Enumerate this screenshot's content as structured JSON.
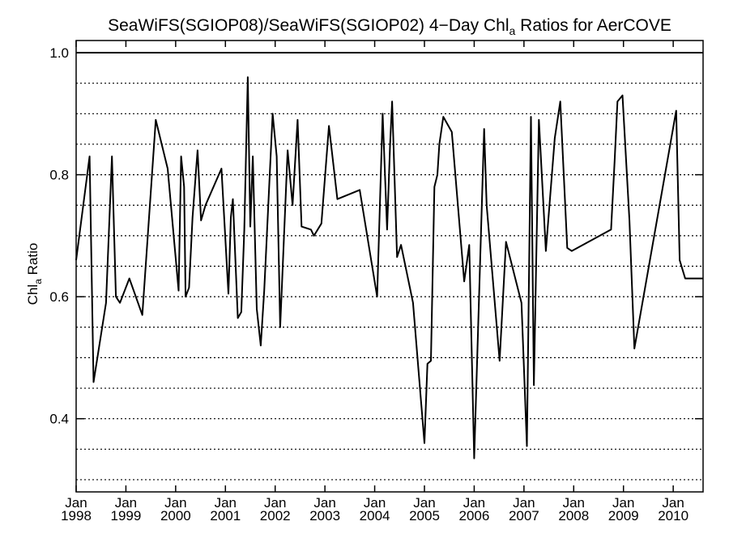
{
  "chart_data": {
    "type": "line",
    "title": "SeaWiFS(SGIOP08)/SeaWiFS(SGIOP02) 4−Day Chl",
    "title_subscript": "a",
    "title_suffix": " Ratios for AerCOVE",
    "ylabel": "Chl",
    "ylabel_subscript": "a",
    "ylabel_suffix": " Ratio",
    "xlabel": "",
    "xlim": [
      1998.0,
      2010.6
    ],
    "ylim": [
      0.28,
      1.02
    ],
    "y_ticks": [
      "0.4",
      "0.6",
      "0.8",
      "1.0"
    ],
    "x_ticks": [
      {
        "month": "Jan",
        "year": "1998"
      },
      {
        "month": "Jan",
        "year": "1999"
      },
      {
        "month": "Jan",
        "year": "2000"
      },
      {
        "month": "Jan",
        "year": "2001"
      },
      {
        "month": "Jan",
        "year": "2002"
      },
      {
        "month": "Jan",
        "year": "2003"
      },
      {
        "month": "Jan",
        "year": "2004"
      },
      {
        "month": "Jan",
        "year": "2005"
      },
      {
        "month": "Jan",
        "year": "2006"
      },
      {
        "month": "Jan",
        "year": "2007"
      },
      {
        "month": "Jan",
        "year": "2008"
      },
      {
        "month": "Jan",
        "year": "2009"
      },
      {
        "month": "Jan",
        "year": "2010"
      }
    ],
    "dotted_grid": [
      0.3,
      0.35,
      0.4,
      0.45,
      0.5,
      0.55,
      0.6,
      0.65,
      0.7,
      0.75,
      0.8,
      0.85,
      0.9,
      0.95
    ],
    "reference_line": 1.0,
    "series": [
      {
        "color": "#000000",
        "x": [
          1998.0,
          1998.27,
          1998.35,
          1998.6,
          1998.72,
          1998.8,
          1998.88,
          1999.07,
          1999.33,
          1999.6,
          1999.84,
          2000.06,
          2000.11,
          2000.17,
          2000.2,
          2000.27,
          2000.34,
          2000.44,
          2000.51,
          2000.6,
          2000.92,
          2001.06,
          2001.11,
          2001.15,
          2001.25,
          2001.32,
          2001.38,
          2001.45,
          2001.5,
          2001.55,
          2001.63,
          2001.71,
          2001.78,
          2001.95,
          2002.03,
          2002.1,
          2002.25,
          2002.35,
          2002.45,
          2002.53,
          2002.72,
          2002.78,
          2002.93,
          2003.08,
          2003.25,
          2003.7,
          2004.05,
          2004.16,
          2004.25,
          2004.31,
          2004.35,
          2004.45,
          2004.53,
          2004.77,
          2005.0,
          2005.06,
          2005.13,
          2005.2,
          2005.26,
          2005.3,
          2005.38,
          2005.55,
          2005.8,
          2005.9,
          2006.0,
          2006.2,
          2006.25,
          2006.51,
          2006.64,
          2006.95,
          2007.06,
          2007.14,
          2007.2,
          2007.3,
          2007.44,
          2007.62,
          2007.73,
          2007.87,
          2007.96,
          2008.75,
          2008.82,
          2008.88,
          2008.98,
          2009.12,
          2009.22,
          2010.06,
          2010.13,
          2010.24,
          2010.36,
          2010.6
        ],
        "y": [
          0.66,
          0.83,
          0.46,
          0.59,
          0.83,
          0.6,
          0.59,
          0.63,
          0.57,
          0.89,
          0.81,
          0.61,
          0.83,
          0.78,
          0.6,
          0.615,
          0.73,
          0.84,
          0.725,
          0.75,
          0.81,
          0.605,
          0.73,
          0.76,
          0.565,
          0.575,
          0.71,
          0.96,
          0.715,
          0.83,
          0.58,
          0.52,
          0.61,
          0.9,
          0.83,
          0.55,
          0.84,
          0.75,
          0.89,
          0.715,
          0.71,
          0.7,
          0.72,
          0.88,
          0.76,
          0.775,
          0.6,
          0.9,
          0.71,
          0.85,
          0.92,
          0.665,
          0.685,
          0.59,
          0.36,
          0.49,
          0.495,
          0.78,
          0.8,
          0.85,
          0.895,
          0.87,
          0.625,
          0.685,
          0.335,
          0.875,
          0.75,
          0.495,
          0.69,
          0.59,
          0.355,
          0.895,
          0.455,
          0.89,
          0.675,
          0.86,
          0.92,
          0.68,
          0.675,
          0.71,
          0.82,
          0.92,
          0.93,
          0.725,
          0.515,
          0.905,
          0.66,
          0.63,
          0.63,
          0.63
        ]
      }
    ]
  }
}
